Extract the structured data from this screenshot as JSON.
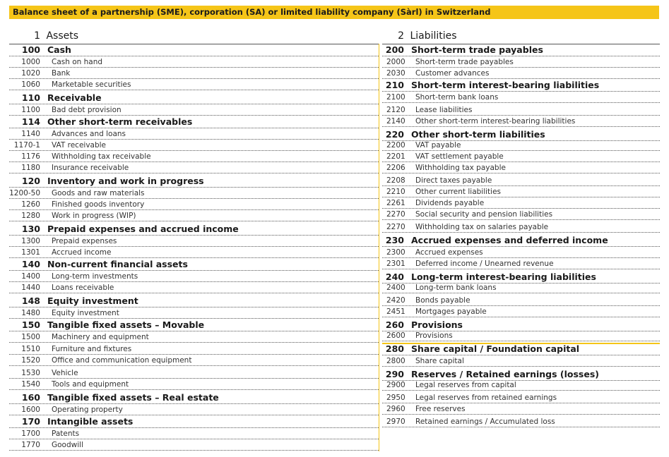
{
  "title": "Balance sheet of a partnership (SME), corporation (SA) or limited liability company (Sàrl) in Switzerland",
  "assets": {
    "code": "1",
    "heading": "Assets",
    "rows": [
      {
        "type": "group",
        "code": "100",
        "label": "Cash"
      },
      {
        "type": "account",
        "code": "1000",
        "label": "Cash on hand"
      },
      {
        "type": "account",
        "code": "1020",
        "label": "Bank"
      },
      {
        "type": "account",
        "code": "1060",
        "label": "Marketable securities"
      },
      {
        "type": "group",
        "code": "110",
        "label": "Receivable"
      },
      {
        "type": "account",
        "code": "1100",
        "label": "Bad debt provision"
      },
      {
        "type": "group",
        "code": "114",
        "label": "Other short-term receivables"
      },
      {
        "type": "account",
        "code": "1140",
        "label": "Advances and loans"
      },
      {
        "type": "account",
        "code": "1170-1",
        "label": "VAT receivable"
      },
      {
        "type": "account",
        "code": "1176",
        "label": "Withholding tax receivable"
      },
      {
        "type": "account",
        "code": "1180",
        "label": "Insurance receivable"
      },
      {
        "type": "group",
        "code": "120",
        "label": "Inventory and work in progress"
      },
      {
        "type": "account",
        "code": "1200-50",
        "label": "Goods and raw materials"
      },
      {
        "type": "account",
        "code": "1260",
        "label": "Finished goods inventory"
      },
      {
        "type": "account",
        "code": "1280",
        "label": "Work in progress (WIP)"
      },
      {
        "type": "group",
        "code": "130",
        "label": "Prepaid expenses and accrued income"
      },
      {
        "type": "account",
        "code": "1300",
        "label": "Prepaid expenses"
      },
      {
        "type": "account",
        "code": "1301",
        "label": "Accrued income"
      },
      {
        "type": "group",
        "code": "140",
        "label": "Non-current financial assets"
      },
      {
        "type": "account",
        "code": "1400",
        "label": "Long-term investments"
      },
      {
        "type": "account",
        "code": "1440",
        "label": "Loans receivable"
      },
      {
        "type": "group",
        "code": "148",
        "label": "Equity investment"
      },
      {
        "type": "account",
        "code": "1480",
        "label": "Equity investment"
      },
      {
        "type": "group",
        "code": "150",
        "label": "Tangible fixed assets – Movable"
      },
      {
        "type": "account",
        "code": "1500",
        "label": "Machinery and equipment"
      },
      {
        "type": "account",
        "code": "1510",
        "label": "Furniture and fixtures"
      },
      {
        "type": "account",
        "code": "1520",
        "label": "Office and communication equipment"
      },
      {
        "type": "account",
        "code": "1530",
        "label": "Vehicle"
      },
      {
        "type": "account",
        "code": "1540",
        "label": "Tools and equipment"
      },
      {
        "type": "group",
        "code": "160",
        "label": "Tangible fixed assets – Real estate"
      },
      {
        "type": "account",
        "code": "1600",
        "label": "Operating property"
      },
      {
        "type": "group",
        "code": "170",
        "label": "Intangible assets"
      },
      {
        "type": "account",
        "code": "1700",
        "label": "Patents"
      },
      {
        "type": "account",
        "code": "1770",
        "label": "Goodwill"
      }
    ]
  },
  "liabilities": {
    "code": "2",
    "heading": "Liabilities",
    "rows": [
      {
        "type": "group",
        "code": "200",
        "label": "Short-term trade payables"
      },
      {
        "type": "account",
        "code": "2000",
        "label": "Short-term trade payables"
      },
      {
        "type": "account",
        "code": "2030",
        "label": "Customer advances"
      },
      {
        "type": "group",
        "code": "210",
        "label": "Short-term interest-bearing liabilities"
      },
      {
        "type": "account",
        "code": "2100",
        "label": "Short-term bank loans"
      },
      {
        "type": "account",
        "code": "2120",
        "label": "Lease liabilities"
      },
      {
        "type": "account",
        "code": "2140",
        "label": "Other short-term interest-bearing liabilities"
      },
      {
        "type": "group",
        "code": "220",
        "label": "Other short-term liabilities"
      },
      {
        "type": "account",
        "code": "2200",
        "label": "VAT payable"
      },
      {
        "type": "account",
        "code": "2201",
        "label": "VAT settlement payable"
      },
      {
        "type": "account",
        "code": "2206",
        "label": "Withholding tax payable"
      },
      {
        "type": "account",
        "code": "2208",
        "label": "Direct taxes payable"
      },
      {
        "type": "account",
        "code": "2210",
        "label": "Other current liabilities"
      },
      {
        "type": "account",
        "code": "2261",
        "label": "Dividends payable"
      },
      {
        "type": "account",
        "code": "2270",
        "label": "Social security and pension liabilities"
      },
      {
        "type": "account",
        "code": "2270",
        "label": "Withholding tax on salaries payable"
      },
      {
        "type": "group",
        "code": "230",
        "label": "Accrued expenses and deferred income"
      },
      {
        "type": "account",
        "code": "2300",
        "label": "Accrued expenses"
      },
      {
        "type": "account",
        "code": "2301",
        "label": "Deferred income / Unearned revenue"
      },
      {
        "type": "group",
        "code": "240",
        "label": "Long-term interest-bearing liabilities"
      },
      {
        "type": "account",
        "code": "2400",
        "label": "Long-term bank loans"
      },
      {
        "type": "account",
        "code": "2420",
        "label": "Bonds payable"
      },
      {
        "type": "account",
        "code": "2451",
        "label": "Mortgages payable"
      },
      {
        "type": "group",
        "code": "260",
        "label": "Provisions"
      },
      {
        "type": "account",
        "code": "2600",
        "label": "Provisions"
      },
      {
        "type": "group",
        "code": "280",
        "label": "Share capital / Foundation capital"
      },
      {
        "type": "account",
        "code": "2800",
        "label": "Share capital"
      },
      {
        "type": "group",
        "code": "290",
        "label": "Reserves / Retained earnings (losses)"
      },
      {
        "type": "account",
        "code": "2900",
        "label": "Legal reserves from capital"
      },
      {
        "type": "account",
        "code": "2950",
        "label": "Legal reserves from retained earnings"
      },
      {
        "type": "account",
        "code": "2960",
        "label": "Free reserves"
      },
      {
        "type": "account",
        "code": "2970",
        "label": "Retained earnings / Accumulated loss"
      }
    ]
  }
}
